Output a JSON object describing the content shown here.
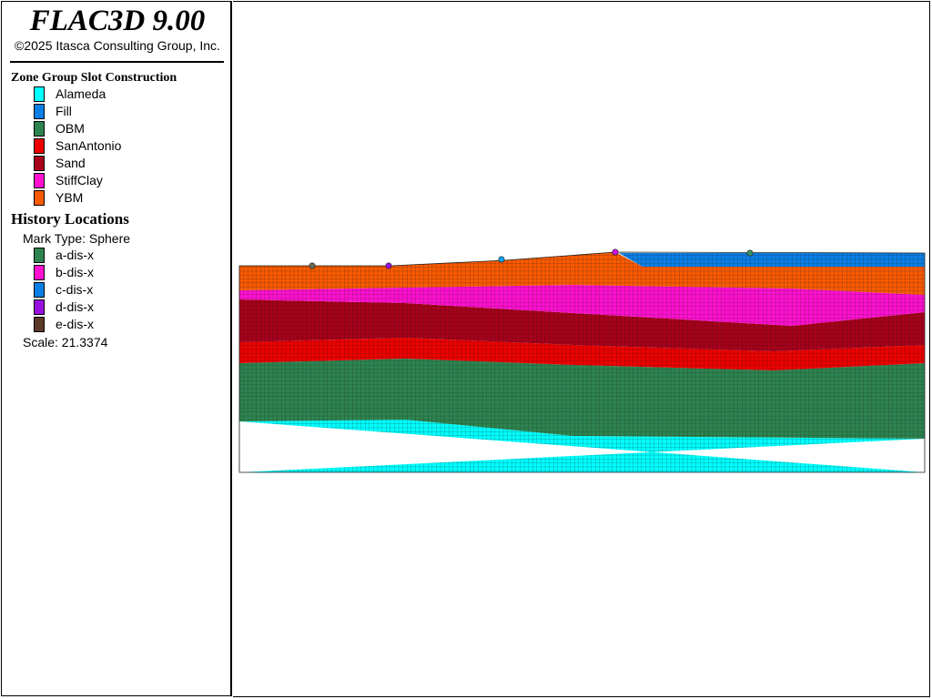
{
  "app": {
    "title": "FLAC3D 9.00",
    "copyright": "©2025 Itasca Consulting Group, Inc."
  },
  "zone_groups": {
    "title": "Zone Group Slot Construction",
    "items": [
      {
        "label": "Alameda",
        "color": "#00ffff"
      },
      {
        "label": "Fill",
        "color": "#0a7fe6"
      },
      {
        "label": "OBM",
        "color": "#2d8450"
      },
      {
        "label": "SanAntonio",
        "color": "#ee0000"
      },
      {
        "label": "Sand",
        "color": "#a8001a"
      },
      {
        "label": "StiffClay",
        "color": "#ff10d0"
      },
      {
        "label": "YBM",
        "color": "#fa5a00"
      }
    ]
  },
  "history": {
    "title": "History Locations",
    "mark_type": "Mark Type: Sphere",
    "items": [
      {
        "label": "a-dis-x",
        "color": "#2d8450"
      },
      {
        "label": "b-dis-x",
        "color": "#ff10d0"
      },
      {
        "label": "c-dis-x",
        "color": "#0a7fe6"
      },
      {
        "label": "d-dis-x",
        "color": "#9a10e0"
      },
      {
        "label": "e-dis-x",
        "color": "#5c3a28"
      }
    ],
    "scale": "Scale: 21.3374"
  },
  "model": {
    "grid_color": "#1a1a1a",
    "history_points": [
      {
        "name": "e-dis-x",
        "color": "#6b6b55"
      },
      {
        "name": "d-dis-x",
        "color": "#9a10e0"
      },
      {
        "name": "c-dis-x",
        "color": "#15a0f0"
      },
      {
        "name": "b-dis-x",
        "color": "#d010e8"
      },
      {
        "name": "a-dis-x",
        "color": "#3a9060"
      }
    ]
  }
}
